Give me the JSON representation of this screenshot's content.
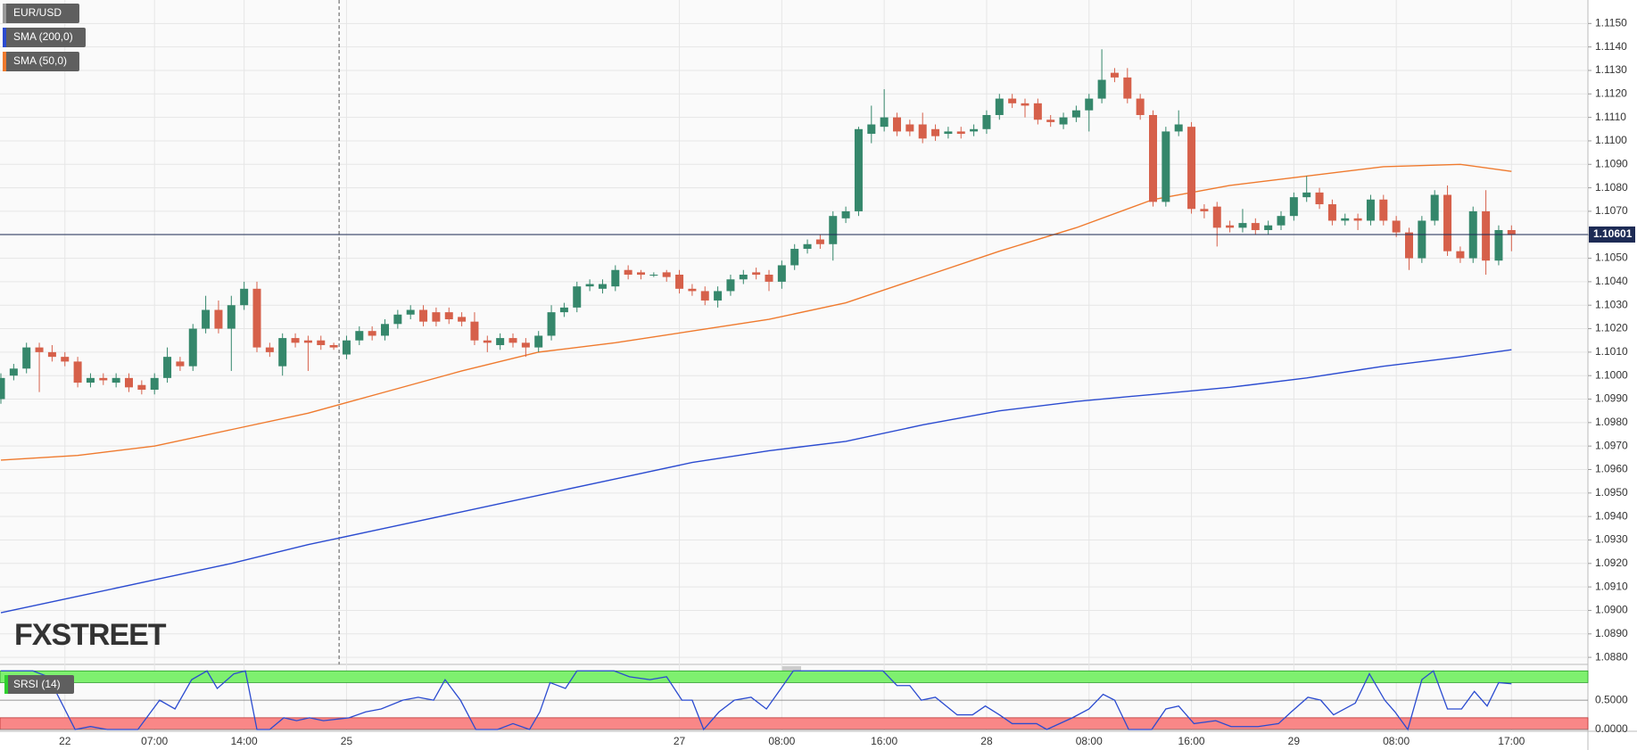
{
  "chart_data": [
    {
      "type": "candlestick",
      "symbol": "EUR/USD",
      "watermark": "FXSTREET",
      "categories": [
        null,
        null,
        null,
        null,
        null,
        "22",
        null,
        null,
        null,
        null,
        null,
        null,
        "07:00",
        null,
        null,
        null,
        null,
        null,
        null,
        "14:00",
        null,
        null,
        null,
        null,
        null,
        null,
        null,
        "25",
        null,
        null,
        null,
        null,
        null,
        null,
        null,
        null,
        null,
        null,
        null,
        null,
        null,
        null,
        null,
        null,
        null,
        null,
        null,
        null,
        null,
        null,
        null,
        null,
        null,
        "27",
        null,
        null,
        null,
        null,
        null,
        null,
        null,
        "08:00",
        null,
        null,
        null,
        null,
        null,
        null,
        null,
        "16:00",
        null,
        null,
        null,
        null,
        null,
        null,
        null,
        "28",
        null,
        null,
        null,
        null,
        null,
        null,
        null,
        "08:00",
        null,
        null,
        null,
        null,
        null,
        null,
        null,
        "16:00",
        null,
        null,
        null,
        null,
        null,
        null,
        null,
        "29",
        null,
        null,
        null,
        null,
        null,
        null,
        null,
        "08:00",
        null,
        null,
        null,
        null,
        null,
        null,
        null,
        null,
        "17:00"
      ],
      "open": [
        1.099,
        1.1,
        1.1003,
        1.1012,
        1.101,
        1.1008,
        1.1006,
        1.0997,
        1.0999,
        1.0997,
        1.0999,
        1.0996,
        1.0994,
        1.0999,
        1.1006,
        1.1004,
        1.102,
        1.1028,
        1.102,
        1.103,
        1.1037,
        1.1012,
        1.1004,
        1.1016,
        1.1015,
        1.1015,
        1.1013,
        1.1009,
        1.1015,
        1.1019,
        1.1017,
        1.1022,
        1.1026,
        1.1028,
        1.1027,
        1.1027,
        1.1025,
        1.1023,
        1.1015,
        1.1013,
        1.1016,
        1.1014,
        1.1012,
        1.1017,
        1.1027,
        1.1029,
        1.1038,
        1.1037,
        1.1038,
        1.1045,
        1.1044,
        1.1043,
        1.1044,
        1.1043,
        1.1037,
        1.1036,
        1.1032,
        1.1036,
        1.1041,
        1.1044,
        1.1043,
        1.104,
        1.1047,
        1.1054,
        1.1058,
        1.1056,
        1.1067,
        1.107,
        1.1103,
        1.1106,
        1.111,
        1.1107,
        1.1107,
        1.1105,
        1.1103,
        1.1104,
        1.1104,
        1.1105,
        1.1111,
        1.1118,
        1.1116,
        1.1116,
        1.1109,
        1.1107,
        1.111,
        1.1113,
        1.1118,
        1.1129,
        1.1127,
        1.1118,
        1.1111,
        1.1074,
        1.1104,
        1.1106,
        1.1071,
        1.1072,
        1.1064,
        1.1063,
        1.1065,
        1.1062,
        1.1064,
        1.1068,
        1.1076,
        1.1078,
        1.1073,
        1.1066,
        1.1067,
        1.1066,
        1.1075,
        1.1066,
        1.1061,
        1.105,
        1.1066,
        1.1077,
        1.1053,
        1.105,
        1.107,
        1.1049,
        1.1062
      ],
      "high": [
        1.1001,
        1.1005,
        1.1014,
        1.1014,
        1.1013,
        1.101,
        1.1008,
        1.1001,
        1.1001,
        1.1001,
        1.1001,
        1.0998,
        1.1001,
        1.1012,
        1.1008,
        1.1022,
        1.1034,
        1.1032,
        1.1034,
        1.104,
        1.104,
        1.1014,
        1.1018,
        1.1018,
        1.1017,
        1.1017,
        1.1014,
        1.1017,
        1.1021,
        1.1021,
        1.1024,
        1.1028,
        1.103,
        1.103,
        1.1029,
        1.1029,
        1.1027,
        1.1027,
        1.1017,
        1.1018,
        1.1018,
        1.1016,
        1.1019,
        1.103,
        1.1031,
        1.104,
        1.1041,
        1.1041,
        1.1047,
        1.1047,
        1.1045,
        1.1044,
        1.1045,
        1.1045,
        1.1039,
        1.1038,
        1.1038,
        1.1043,
        1.1045,
        1.1046,
        1.1045,
        1.1049,
        1.1056,
        1.1058,
        1.106,
        1.107,
        1.1072,
        1.1106,
        1.1115,
        1.1122,
        1.1112,
        1.1109,
        1.1112,
        1.1107,
        1.1106,
        1.1106,
        1.1107,
        1.1113,
        1.112,
        1.112,
        1.1118,
        1.1118,
        1.1111,
        1.1112,
        1.1115,
        1.112,
        1.1139,
        1.1131,
        1.1131,
        1.112,
        1.1113,
        1.1106,
        1.1113,
        1.1108,
        1.1073,
        1.1074,
        1.1066,
        1.1071,
        1.1067,
        1.1066,
        1.107,
        1.1078,
        1.1085,
        1.108,
        1.1075,
        1.1069,
        1.1069,
        1.1077,
        1.1077,
        1.1068,
        1.1063,
        1.1068,
        1.1079,
        1.1081,
        1.1055,
        1.1072,
        1.1079,
        1.1064,
        1.1064
      ],
      "low": [
        1.0988,
        1.0998,
        1.1001,
        1.0993,
        1.1006,
        1.1004,
        1.0995,
        1.0995,
        1.0996,
        1.0995,
        1.0993,
        1.0992,
        1.0992,
        1.0997,
        1.1002,
        1.1002,
        1.1018,
        1.1018,
        1.1002,
        1.1028,
        1.101,
        1.1008,
        1.1,
        1.1012,
        1.1002,
        1.1011,
        1.1011,
        1.1007,
        1.1013,
        1.1015,
        1.1015,
        1.102,
        1.1024,
        1.1021,
        1.1021,
        1.1022,
        1.1021,
        1.1013,
        1.101,
        1.1011,
        1.1012,
        1.1008,
        1.101,
        1.1015,
        1.1025,
        1.1027,
        1.1036,
        1.1035,
        1.1036,
        1.1041,
        1.1041,
        1.1042,
        1.104,
        1.1035,
        1.1034,
        1.103,
        1.1029,
        1.1034,
        1.1039,
        1.1041,
        1.1036,
        1.1037,
        1.1045,
        1.1052,
        1.1054,
        1.1049,
        1.1065,
        1.1068,
        1.1099,
        1.1104,
        1.1102,
        1.1102,
        1.1099,
        1.11,
        1.1101,
        1.1101,
        1.1102,
        1.1103,
        1.1109,
        1.1114,
        1.111,
        1.1107,
        1.1106,
        1.1105,
        1.1108,
        1.1104,
        1.1116,
        1.1125,
        1.1116,
        1.1109,
        1.1072,
        1.1072,
        1.1102,
        1.1069,
        1.1067,
        1.1055,
        1.1061,
        1.1061,
        1.106,
        1.106,
        1.1062,
        1.1066,
        1.1074,
        1.1071,
        1.1064,
        1.1064,
        1.1062,
        1.1064,
        1.1064,
        1.1059,
        1.1045,
        1.1048,
        1.1064,
        1.1051,
        1.1048,
        1.1048,
        1.1043,
        1.1047,
        1.1053
      ],
      "close": [
        1.0999,
        1.1003,
        1.1012,
        1.101,
        1.1008,
        1.1006,
        1.0997,
        1.0999,
        1.0998,
        1.0999,
        1.0995,
        1.0994,
        1.0999,
        1.1008,
        1.1004,
        1.102,
        1.1028,
        1.102,
        1.103,
        1.1037,
        1.1012,
        1.101,
        1.1016,
        1.1014,
        1.1014,
        1.1013,
        1.1012,
        1.1015,
        1.1019,
        1.1017,
        1.1022,
        1.1026,
        1.1028,
        1.1023,
        1.1023,
        1.1024,
        1.1023,
        1.1015,
        1.1014,
        1.1016,
        1.1014,
        1.1012,
        1.1017,
        1.1027,
        1.1029,
        1.1038,
        1.1039,
        1.1039,
        1.1045,
        1.1043,
        1.1043,
        1.1043,
        1.1042,
        1.1037,
        1.1036,
        1.1032,
        1.1036,
        1.1041,
        1.1043,
        1.1043,
        1.104,
        1.1047,
        1.1054,
        1.1056,
        1.1056,
        1.1068,
        1.107,
        1.1105,
        1.1107,
        1.111,
        1.1104,
        1.1104,
        1.1101,
        1.1102,
        1.1104,
        1.1103,
        1.1105,
        1.1111,
        1.1118,
        1.1116,
        1.1115,
        1.1109,
        1.1108,
        1.111,
        1.1113,
        1.1118,
        1.1126,
        1.1127,
        1.1118,
        1.1111,
        1.1074,
        1.1104,
        1.1107,
        1.1071,
        1.107,
        1.1063,
        1.1063,
        1.1065,
        1.1062,
        1.1064,
        1.1068,
        1.1076,
        1.1078,
        1.1073,
        1.1066,
        1.1067,
        1.1066,
        1.1075,
        1.1066,
        1.1061,
        1.105,
        1.1066,
        1.1077,
        1.1053,
        1.105,
        1.107,
        1.1049,
        1.1062,
        1.106
      ],
      "up_color": "#35876b",
      "down_color": "#d6604a",
      "series": [
        {
          "name": "SMA (200,0)",
          "color": "#2b4bd0",
          "x": [
            0,
            6,
            12,
            18,
            24,
            30,
            36,
            42,
            48,
            54,
            60,
            66,
            72,
            78,
            84,
            90,
            96,
            102,
            108,
            114,
            118
          ],
          "values": [
            1.0899,
            1.0906,
            1.0913,
            1.092,
            1.0928,
            1.0935,
            1.0942,
            1.0949,
            1.0956,
            1.0963,
            1.0968,
            1.0972,
            1.0979,
            1.0985,
            1.0989,
            1.0992,
            1.0995,
            1.0999,
            1.1004,
            1.1008,
            1.1011
          ]
        },
        {
          "name": "SMA (50,0)",
          "color": "#ef7a2e",
          "x": [
            0,
            6,
            12,
            18,
            24,
            30,
            36,
            42,
            48,
            54,
            60,
            66,
            72,
            78,
            84,
            90,
            96,
            102,
            108,
            114,
            118
          ],
          "values": [
            1.0964,
            1.0966,
            1.097,
            1.0977,
            1.0984,
            1.0993,
            1.1002,
            1.101,
            1.1014,
            1.1019,
            1.1024,
            1.1031,
            1.1042,
            1.1053,
            1.1063,
            1.1075,
            1.1081,
            1.1085,
            1.1089,
            1.109,
            1.1087
          ]
        }
      ],
      "last_price": 1.10601,
      "ylim": [
        1.0877,
        1.116
      ],
      "yticks": [
        {
          "value": 1.088,
          "label": "1.0880"
        },
        {
          "value": 1.089,
          "label": "1.0890"
        },
        {
          "value": 1.09,
          "label": "1.0900"
        },
        {
          "value": 1.091,
          "label": "1.0910"
        },
        {
          "value": 1.092,
          "label": "1.0920"
        },
        {
          "value": 1.093,
          "label": "1.0930"
        },
        {
          "value": 1.094,
          "label": "1.0940"
        },
        {
          "value": 1.095,
          "label": "1.0950"
        },
        {
          "value": 1.096,
          "label": "1.0960"
        },
        {
          "value": 1.097,
          "label": "1.0970"
        },
        {
          "value": 1.098,
          "label": "1.0980"
        },
        {
          "value": 1.099,
          "label": "1.0990"
        },
        {
          "value": 1.1,
          "label": "1.1000"
        },
        {
          "value": 1.101,
          "label": "1.1010"
        },
        {
          "value": 1.102,
          "label": "1.1020"
        },
        {
          "value": 1.103,
          "label": "1.1030"
        },
        {
          "value": 1.104,
          "label": "1.1040"
        },
        {
          "value": 1.105,
          "label": "1.1050"
        },
        {
          "value": 1.106,
          "label": "1.1060"
        },
        {
          "value": 1.107,
          "label": "1.1070"
        },
        {
          "value": 1.108,
          "label": "1.1080"
        },
        {
          "value": 1.109,
          "label": "1.1090"
        },
        {
          "value": 1.11,
          "label": "1.1100"
        },
        {
          "value": 1.111,
          "label": "1.1110"
        },
        {
          "value": 1.112,
          "label": "1.1120"
        },
        {
          "value": 1.113,
          "label": "1.1130"
        },
        {
          "value": 1.114,
          "label": "1.1140"
        },
        {
          "value": 1.115,
          "label": "1.1150"
        }
      ],
      "grid": true
    },
    {
      "type": "line",
      "name": "SRSI (14)",
      "color": "#2b4bd0",
      "x": [
        0,
        2.5,
        3.7,
        5.8,
        7.0,
        8.3,
        10.7,
        12.4,
        13.6,
        14.9,
        16.1,
        16.9,
        18.2,
        19.1,
        20.0,
        21.0,
        22.1,
        23.1,
        24.1,
        25.2,
        27.2,
        28.5,
        29.7,
        31.4,
        32.6,
        33.8,
        34.7,
        35.9,
        37.1,
        38.8,
        40.0,
        41.3,
        42.1,
        42.9,
        44.1,
        45.0,
        47.9,
        49.1,
        50.7,
        52.0,
        53.2,
        54.0,
        54.9,
        56.1,
        57.3,
        58.6,
        59.8,
        61.1,
        61.9,
        65.2,
        68.9,
        70.0,
        71.0,
        71.9,
        73.0,
        74.7,
        75.9,
        76.9,
        78.0,
        79.0,
        80.9,
        81.7,
        83.7,
        85.0,
        86.1,
        87.0,
        88.1,
        89.9,
        91.0,
        92.0,
        93.2,
        94.9,
        96.1,
        98.2,
        99.8,
        100.8,
        102.1,
        103.1,
        104.1,
        105.8,
        106.9,
        108.1,
        108.9,
        109.9,
        111.0,
        111.9,
        113.0,
        114.1,
        115.1,
        116.1,
        117.0,
        118
      ],
      "values": [
        1.0,
        1.0,
        0.9,
        0.0,
        0.05,
        0.0,
        0.0,
        0.5,
        0.35,
        0.85,
        1.0,
        0.7,
        0.95,
        1.0,
        0.0,
        0.0,
        0.2,
        0.15,
        0.2,
        0.15,
        0.2,
        0.3,
        0.35,
        0.5,
        0.55,
        0.5,
        0.85,
        0.5,
        0.0,
        0.0,
        0.1,
        0.0,
        0.3,
        0.8,
        0.7,
        1.0,
        1.0,
        0.9,
        0.85,
        0.9,
        0.5,
        0.5,
        0.0,
        0.3,
        0.5,
        0.55,
        0.35,
        0.75,
        1.0,
        1.0,
        1.0,
        0.75,
        0.75,
        0.5,
        0.55,
        0.25,
        0.25,
        0.4,
        0.25,
        0.1,
        0.1,
        0.0,
        0.2,
        0.35,
        0.6,
        0.5,
        0.0,
        0.0,
        0.35,
        0.4,
        0.1,
        0.15,
        0.05,
        0.05,
        0.1,
        0.3,
        0.55,
        0.5,
        0.25,
        0.45,
        0.95,
        0.5,
        0.3,
        0.0,
        0.85,
        1.0,
        0.35,
        0.35,
        0.65,
        0.4,
        0.8,
        0.78
      ],
      "overbought": 0.8,
      "oversold": 0.2,
      "overbought_color": "#7ef06f",
      "oversold_color": "#f98787",
      "ylim": [
        0,
        1.05
      ],
      "yticks": [
        {
          "value": 0.5,
          "label": "0.5000"
        },
        {
          "value": 0,
          "label": "0.0000"
        }
      ],
      "grid": true
    }
  ]
}
